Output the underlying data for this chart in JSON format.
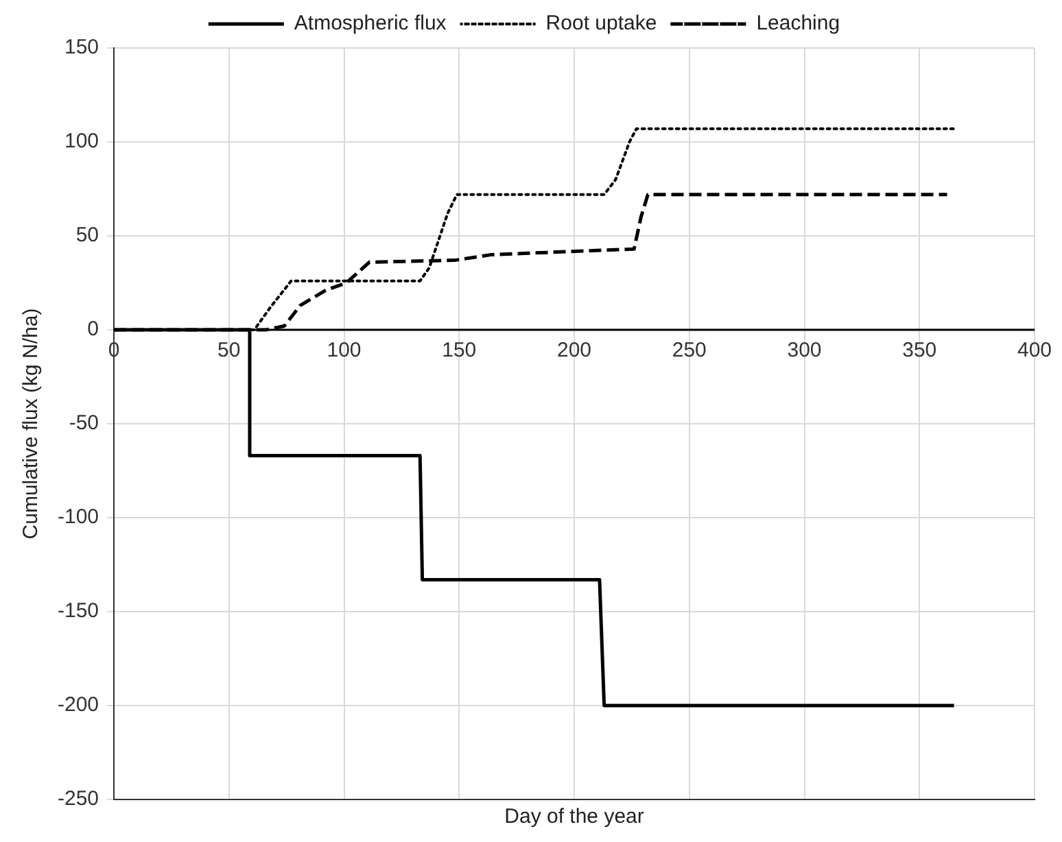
{
  "chart_data": {
    "type": "line",
    "xlabel": "Day of the year",
    "ylabel": "Cumulative flux (kg N/ha)",
    "xlim": [
      0,
      400
    ],
    "xticks": [
      0,
      50,
      100,
      150,
      200,
      250,
      300,
      350,
      400
    ],
    "ylim": [
      -250,
      150
    ],
    "yticks": [
      -250,
      -200,
      -150,
      -100,
      -50,
      0,
      50,
      100,
      150
    ],
    "grid": true,
    "legend": "top",
    "marker": "none",
    "series": [
      {
        "name": "Atmospheric flux",
        "color": "#000000",
        "line_style": "solid",
        "x": [
          0,
          59,
          59,
          133,
          134,
          211,
          213,
          365
        ],
        "values": [
          0,
          0,
          -67,
          -67,
          -133,
          -133,
          -200,
          -200
        ]
      },
      {
        "name": "Root uptake",
        "color": "#000000",
        "line_style": "dotted",
        "x": [
          0,
          61,
          68,
          77,
          133,
          137,
          145,
          149,
          213,
          218,
          224,
          227,
          365
        ],
        "values": [
          0,
          0,
          12,
          26,
          26,
          33,
          62,
          72,
          72,
          80,
          100,
          107,
          107
        ]
      },
      {
        "name": "Leaching",
        "color": "#000000",
        "line_style": "dashed",
        "x": [
          0,
          66,
          74,
          81,
          92,
          101,
          111,
          148,
          164,
          226,
          229,
          232,
          362
        ],
        "values": [
          0,
          0,
          2,
          13,
          21,
          25,
          36,
          37,
          40,
          43,
          60,
          72,
          72
        ]
      }
    ]
  }
}
